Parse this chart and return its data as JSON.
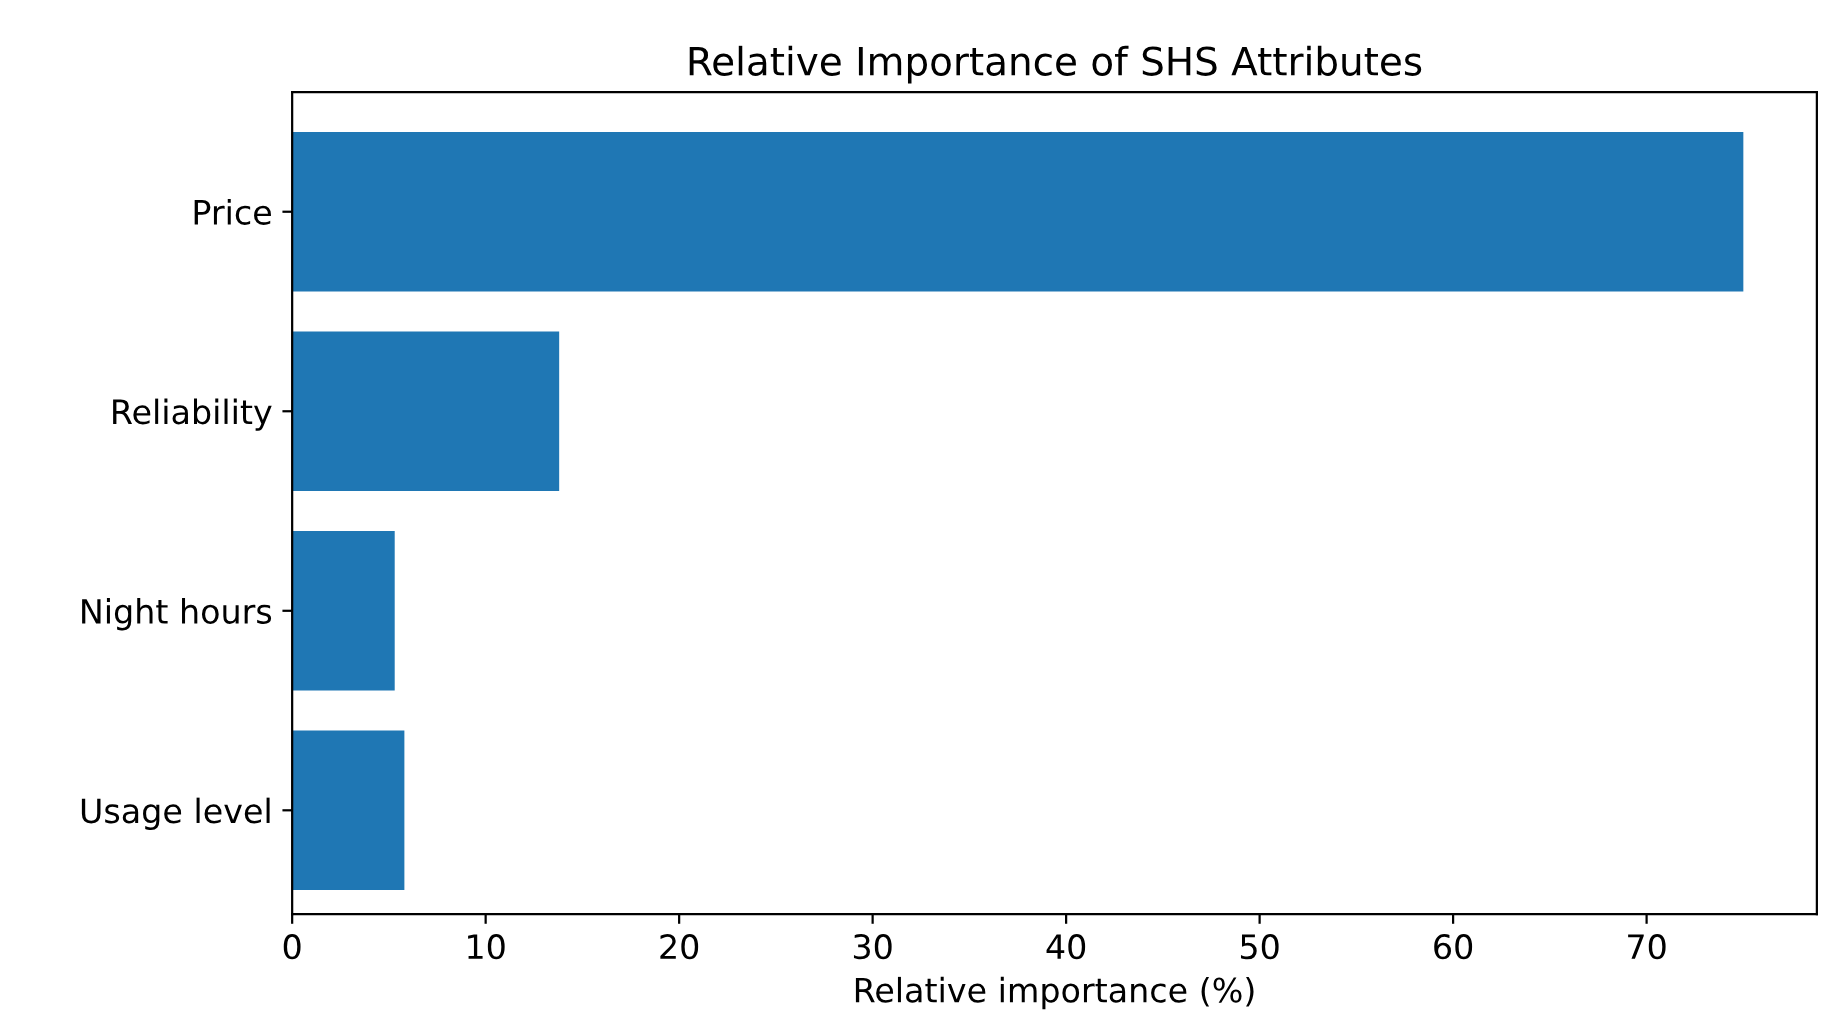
{
  "chart_data": {
    "type": "bar",
    "orientation": "horizontal",
    "title": "Relative Importance of SHS Attributes",
    "xlabel": "Relative importance (%)",
    "categories": [
      "Price",
      "Reliability",
      "Night hours",
      "Usage level"
    ],
    "values": [
      75.0,
      13.8,
      5.3,
      5.8
    ],
    "color": "#1f77b4",
    "xlim": [
      0,
      78.8
    ],
    "xticks": [
      0,
      10,
      20,
      30,
      40,
      50,
      60,
      70
    ],
    "grid": false
  }
}
